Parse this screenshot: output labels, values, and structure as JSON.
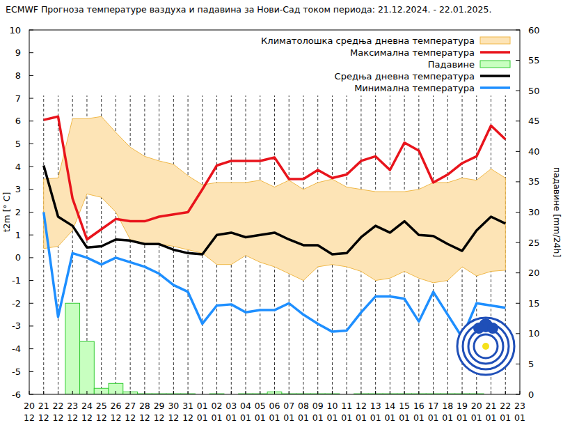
{
  "chart_data": {
    "type": "line",
    "title": "ECMWF Прогноза температуре ваздуха и падавина за Нови-Сад током периода: 21.12.2024. - 22.01.2025.",
    "y_label": "t2m [° C]",
    "y2_label": "падавине [mm/24h]",
    "categories": [
      "20\n12",
      "21\n12",
      "22\n12",
      "23\n12",
      "24\n12",
      "25\n12",
      "26\n12",
      "27\n12",
      "28\n12",
      "29\n12",
      "30\n12",
      "31\n12",
      "01\n01",
      "02\n01",
      "03\n01",
      "04\n01",
      "05\n01",
      "06\n01",
      "07\n01",
      "08\n01",
      "09\n01",
      "10\n01",
      "11\n01",
      "12\n01",
      "13\n01",
      "14\n01",
      "15\n01",
      "16\n01",
      "17\n01",
      "18\n01",
      "19\n01",
      "20\n01",
      "21\n01",
      "22\n01",
      "23\n01"
    ],
    "ylim": [
      -6,
      10
    ],
    "yticks": [
      -6,
      -5,
      -4,
      -3,
      -2,
      -1,
      0,
      1,
      2,
      3,
      4,
      5,
      6,
      7,
      8,
      9,
      10
    ],
    "y2lim": [
      0,
      60
    ],
    "y2ticks": [
      0,
      5,
      10,
      15,
      20,
      25,
      30,
      35,
      40,
      45,
      50,
      55,
      60
    ],
    "grid": true,
    "legend": "upper right",
    "series": [
      {
        "name": "Климатолошка средња дневна температура",
        "type": "band",
        "color": "#fde4b6",
        "lower": [
          null,
          0.4,
          0.5,
          1.2,
          2.8,
          2.65,
          2.0,
          0.8,
          0.6,
          0.6,
          0.5,
          0.35,
          0.2,
          -0.3,
          -0.3,
          0.1,
          -0.2,
          -0.4,
          -0.7,
          -1.0,
          -0.4,
          -0.3,
          -0.4,
          -0.6,
          -1.0,
          -0.9,
          -0.6,
          -0.9,
          -1.1,
          -1.0,
          -0.4,
          -0.8,
          -0.6,
          -0.55,
          null
        ],
        "upper": [
          null,
          3.45,
          3.5,
          6.1,
          6.1,
          6.2,
          5.5,
          4.85,
          4.45,
          4.25,
          4.1,
          3.6,
          3.2,
          3.3,
          3.3,
          3.3,
          3.4,
          3.1,
          3.4,
          3.0,
          3.3,
          3.45,
          3.1,
          3.0,
          2.9,
          2.9,
          2.9,
          3.0,
          3.3,
          3.3,
          3.5,
          3.4,
          3.9,
          3.5,
          null
        ]
      },
      {
        "name": "Максимална температура",
        "type": "line",
        "color": "#e8141c",
        "values": [
          null,
          6.05,
          6.2,
          2.6,
          0.8,
          1.25,
          1.7,
          1.6,
          1.6,
          1.8,
          1.9,
          2.0,
          3.0,
          4.05,
          4.25,
          4.25,
          4.25,
          4.4,
          3.45,
          3.45,
          3.85,
          3.5,
          3.65,
          4.25,
          4.45,
          3.85,
          5.05,
          4.7,
          3.3,
          3.65,
          4.15,
          4.45,
          5.8,
          5.2,
          null
        ]
      },
      {
        "name": "Падавине",
        "type": "bar",
        "axis": "y2",
        "color": "#c8ffc0",
        "values": [
          null,
          0,
          0,
          15,
          8.7,
          1.0,
          1.8,
          0.4,
          0.1,
          0.1,
          0.1,
          0.1,
          0,
          0.1,
          0,
          0.1,
          0.1,
          0.4,
          0.1,
          0.1,
          0.1,
          0.1,
          0,
          0.1,
          0.1,
          0.1,
          0.1,
          0.1,
          0.1,
          0.1,
          0.1,
          0.1,
          0,
          0,
          null
        ]
      },
      {
        "name": "Средња дневна температура",
        "type": "line",
        "color": "#000000",
        "values": [
          null,
          4.05,
          1.8,
          1.4,
          0.45,
          0.5,
          0.8,
          0.75,
          0.6,
          0.6,
          0.35,
          0.2,
          0.15,
          1.0,
          1.1,
          0.9,
          1.0,
          1.1,
          0.8,
          0.55,
          0.55,
          0.15,
          0.2,
          0.9,
          1.4,
          1.1,
          1.6,
          1.0,
          0.95,
          0.6,
          0.3,
          1.2,
          1.8,
          1.5,
          null
        ]
      },
      {
        "name": "Минимална температура",
        "type": "line",
        "color": "#1e8fff",
        "values": [
          null,
          2.0,
          -2.6,
          0.2,
          0,
          -0.3,
          0,
          -0.2,
          -0.4,
          -0.7,
          -1.2,
          -1.5,
          -2.9,
          -2.1,
          -2.05,
          -2.4,
          -2.3,
          -2.3,
          -2.0,
          -2.5,
          -2.9,
          -3.25,
          -3.2,
          -2.4,
          -1.7,
          -1.7,
          -1.8,
          -2.8,
          -1.5,
          -2.5,
          -3.5,
          -2.0,
          -2.1,
          -2.2,
          null
        ]
      }
    ]
  }
}
